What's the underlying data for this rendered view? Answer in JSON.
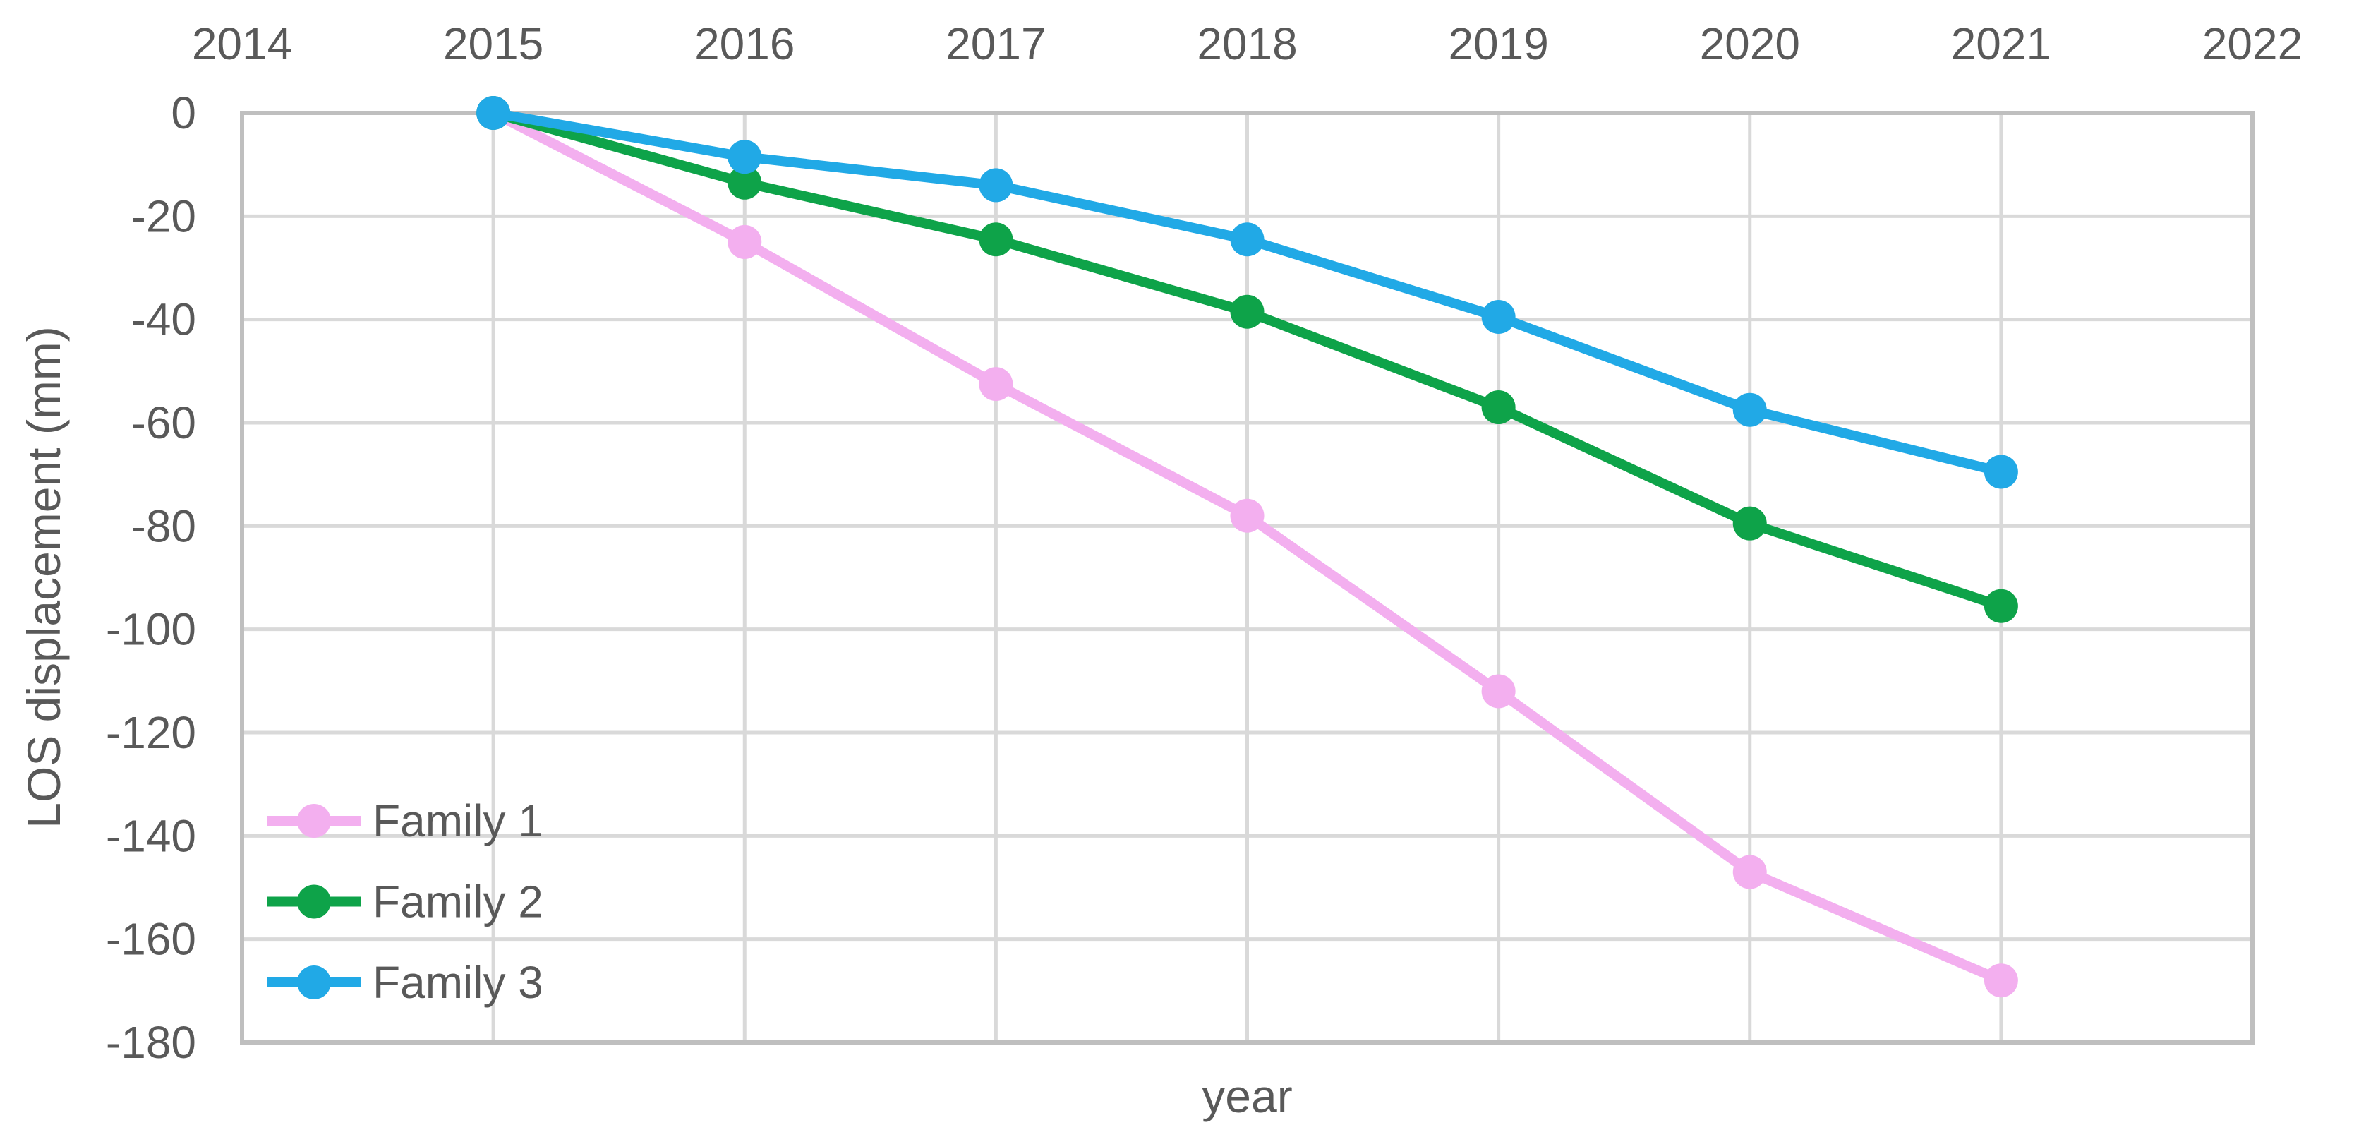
{
  "chart_data": {
    "type": "line",
    "title": "",
    "xlabel": "year",
    "ylabel": "LOS displacement (mm)",
    "xlim": [
      2014,
      2022
    ],
    "ylim": [
      -180,
      0
    ],
    "x_ticks": [
      2014,
      2015,
      2016,
      2017,
      2018,
      2019,
      2020,
      2021,
      2022
    ],
    "y_ticks": [
      0,
      -20,
      -40,
      -60,
      -80,
      -100,
      -120,
      -140,
      -160,
      -180
    ],
    "grid": true,
    "legend_position": "inside-bottom-left",
    "x": [
      2015,
      2016,
      2017,
      2018,
      2019,
      2020,
      2021
    ],
    "series": [
      {
        "name": "Family 1",
        "color": "#F3AFEF",
        "values": [
          0,
          -25,
          -52.5,
          -78,
          -112,
          -147,
          -168
        ]
      },
      {
        "name": "Family 2",
        "color": "#0EA349",
        "values": [
          0,
          -13.5,
          -24.5,
          -38.5,
          -57,
          -79.5,
          -95.5
        ]
      },
      {
        "name": "Family 3",
        "color": "#21A9E6",
        "values": [
          0,
          -8.5,
          -14,
          -24.5,
          -39.5,
          -57.5,
          -69.5
        ]
      }
    ]
  },
  "style": {
    "grid_color": "#D9D9D9",
    "border_color": "#BFBFBF",
    "text_color": "#595959",
    "background": "#FFFFFF"
  }
}
